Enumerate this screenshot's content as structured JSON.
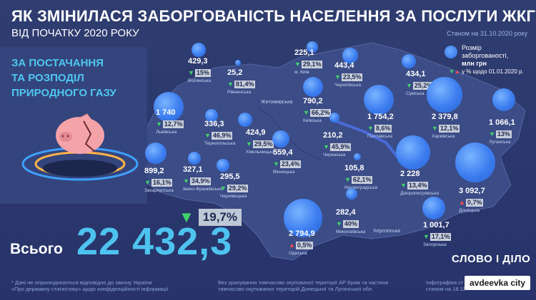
{
  "title": "ЯК ЗМІНИЛАСЯ ЗАБОРГОВАНІСТЬ НАСЕЛЕННЯ ЗА ПОСЛУГИ ЖКГ",
  "subtitle": "ВІД ПОЧАТКУ 2020 РОКУ",
  "as_of": "Станом на 31.10.2020 року",
  "panel": {
    "line1": "ЗА ПОСТАЧАННЯ",
    "line2": "ТА РОЗПОДІЛ",
    "line3": "ПРИРОДНОГО ГАЗУ"
  },
  "legend": {
    "line1": "Розмір",
    "line2": "заборгованості,",
    "line3": "млн грн",
    "change_note": "у % щодо 01.01.2020 р."
  },
  "total": {
    "label": "Всього",
    "value": "22 432,3",
    "change": "19,7%"
  },
  "kyiv_city_label": "м. Київ",
  "map_labels": {
    "zhytomyr": "Житомирська",
    "kherson": "Херсонська"
  },
  "footer": {
    "left_line1": "* Дані не оприлюднюються відповідно до закону України",
    "left_line2": "«Про державну статистику» щодо конфіденційності інформації",
    "mid_line1": "Без урахування тимчасово окупованої території АР Крим та частини",
    "mid_line2": "тимчасово окупованих територій Донецької та Луганської обл.",
    "right_line1": "Інфографіка ст",
    "right_line2": "станом на 18.11"
  },
  "logo": "СЛОВО І ДІЛО",
  "badge": "avdeevka city",
  "colors": {
    "bubble": "#3c7df0",
    "accent": "#4ec3ef",
    "down": "#3fd36a",
    "up": "#ff4a4a"
  },
  "chart_data": {
    "type": "bubble-map",
    "unit": "млн грн",
    "regions": [
      {
        "name": "Волинська",
        "value": 429.3,
        "value_text": "429,3",
        "change": "15%",
        "direction": "down"
      },
      {
        "name": "Рівненська",
        "value": 25.2,
        "value_text": "25,2",
        "change": "81,4%",
        "direction": "down"
      },
      {
        "name": "м. Київ",
        "value": 225.1,
        "value_text": "225,1",
        "change": "29,1%",
        "direction": "down"
      },
      {
        "name": "Чернігівська",
        "value": 443.4,
        "value_text": "443,4",
        "change": "23,5%",
        "direction": "down"
      },
      {
        "name": "Сумська",
        "value": 434.1,
        "value_text": "434,1",
        "change": "25,2%",
        "direction": "down"
      },
      {
        "name": "Львівська",
        "value": 1740,
        "value_text": "1 740",
        "change": "12,7%",
        "direction": "down"
      },
      {
        "name": "Тернопільська",
        "value": 336.3,
        "value_text": "336,3",
        "change": "46,9%",
        "direction": "down"
      },
      {
        "name": "Хмельницька",
        "value": 424.9,
        "value_text": "424,9",
        "change": "29,5%",
        "direction": "down"
      },
      {
        "name": "Київська",
        "value": 790.2,
        "value_text": "790,2",
        "change": "66,2%",
        "direction": "down"
      },
      {
        "name": "Полтавська",
        "value": 1754.2,
        "value_text": "1 754,2",
        "change": "8,6%",
        "direction": "down"
      },
      {
        "name": "Харківська",
        "value": 2379.8,
        "value_text": "2 379,8",
        "change": "12,1%",
        "direction": "down"
      },
      {
        "name": "Луганська",
        "value": 1066.1,
        "value_text": "1 066,1",
        "change": "13%",
        "direction": "down"
      },
      {
        "name": "Вінницька",
        "value": 559.4,
        "value_text": "559,4",
        "change": "23,4%",
        "direction": "down"
      },
      {
        "name": "Черкаська",
        "value": 210.2,
        "value_text": "210,2",
        "change": "45,9%",
        "direction": "down"
      },
      {
        "name": "Закарпатська",
        "value": 899.2,
        "value_text": "899,2",
        "change": "16,1%",
        "direction": "down"
      },
      {
        "name": "Івано-Франківська",
        "value": 327.1,
        "value_text": "327,1",
        "change": "34,9%",
        "direction": "down"
      },
      {
        "name": "Чернівецька",
        "value": 295.5,
        "value_text": "295,5",
        "change": "29,2%",
        "direction": "down"
      },
      {
        "name": "Кіровоградська",
        "value": 105.8,
        "value_text": "105,8",
        "change": "62,1%",
        "direction": "down"
      },
      {
        "name": "Дніпропетровська",
        "value": 2228,
        "value_text": "2 228",
        "change": "13,4%",
        "direction": "down"
      },
      {
        "name": "Донецька",
        "value": 3092.7,
        "value_text": "3 092,7",
        "change": "0,7%",
        "direction": "up"
      },
      {
        "name": "Миколаївська",
        "value": 282.4,
        "value_text": "282,4",
        "change": "40%",
        "direction": "down"
      },
      {
        "name": "Одеська",
        "value": 2794.9,
        "value_text": "2 794,9",
        "change": "0,5%",
        "direction": "up"
      },
      {
        "name": "Запорізька",
        "value": 1001.7,
        "value_text": "1 001,7",
        "change": "17,1%",
        "direction": "down"
      }
    ]
  }
}
